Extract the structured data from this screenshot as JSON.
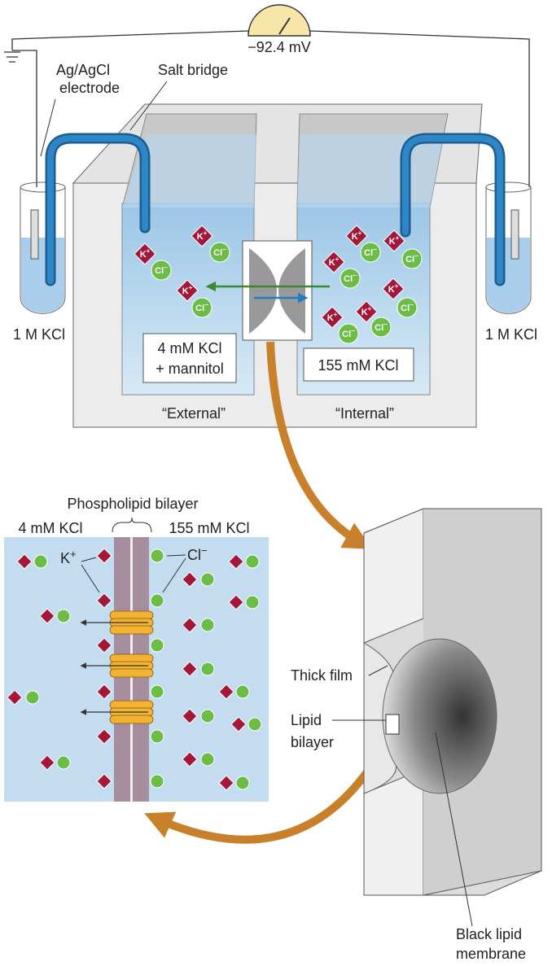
{
  "meter": {
    "reading": "−92.4 mV"
  },
  "labels": {
    "electrode": [
      "Ag/AgCl",
      "electrode"
    ],
    "salt_bridge": "Salt bridge",
    "left_reservoir": "1 M KCl",
    "right_reservoir": "1 M KCl"
  },
  "chambers": {
    "external": {
      "solution": [
        "4 mM KCl",
        "+ mannitol"
      ],
      "name": "“External”"
    },
    "internal": {
      "solution": [
        "155 mM KCl"
      ],
      "name": "“Internal”"
    }
  },
  "ions": {
    "potassium": {
      "symbol": "K",
      "charge": "+"
    },
    "chloride": {
      "symbol": "Cl",
      "charge": "−"
    }
  },
  "bilayer_detail": {
    "title": "Phospholipid bilayer",
    "left": "4 mM KCl",
    "right": "155 mM KCl"
  },
  "membrane_detail": {
    "thick_film": "Thick film",
    "lipid_bilayer": [
      "Lipid",
      "bilayer"
    ],
    "black_lipid_membrane": [
      "Black lipid",
      "membrane"
    ]
  }
}
